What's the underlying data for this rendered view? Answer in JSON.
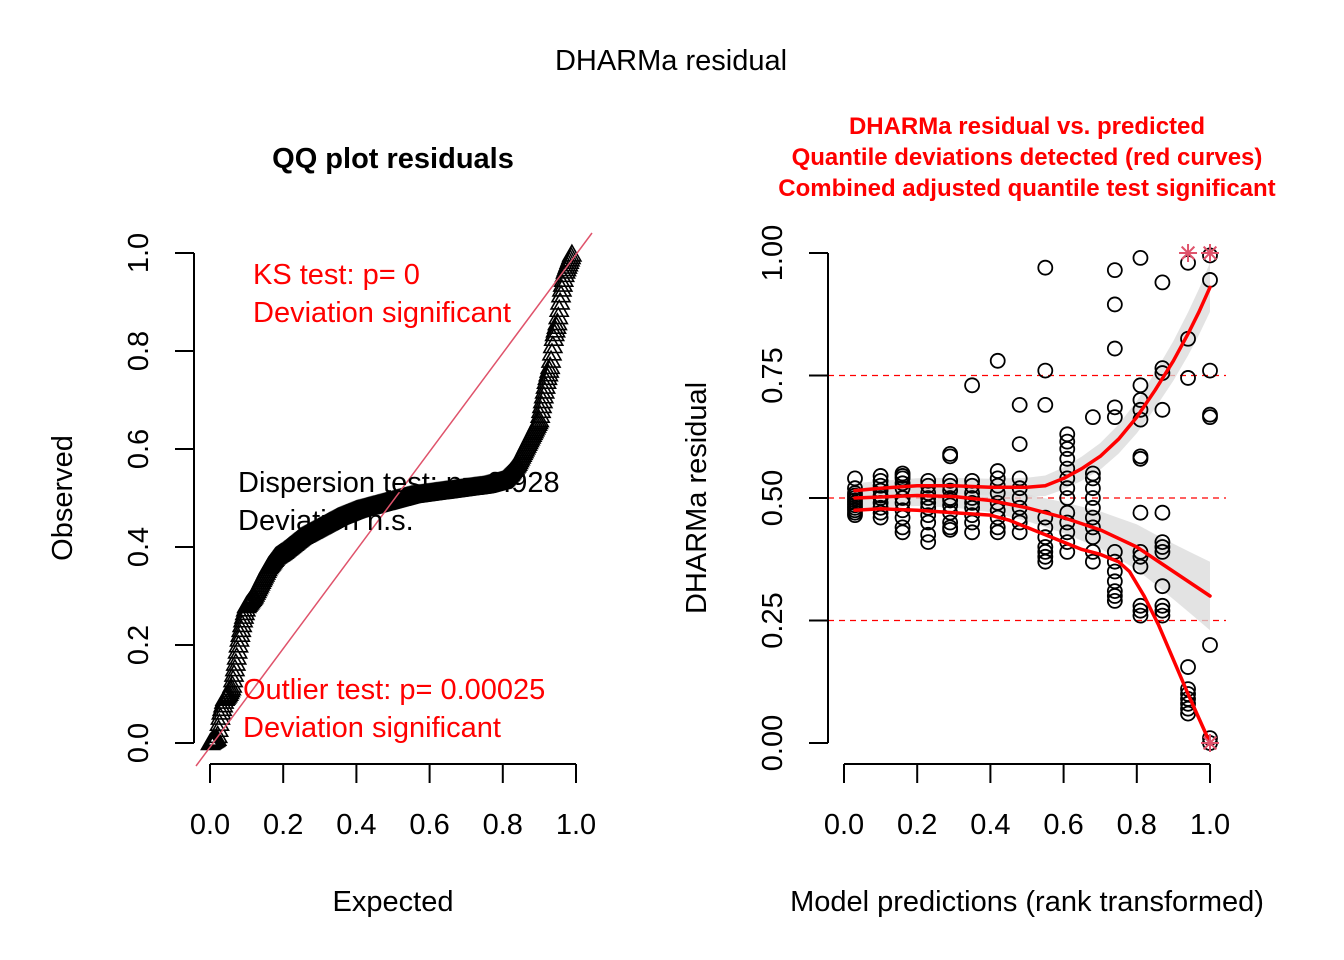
{
  "page_title": "DHARMa residual",
  "chart_data": [
    {
      "type": "scatter",
      "title": "QQ plot residuals",
      "xlabel": "Expected",
      "ylabel": "Observed",
      "xlim": [
        0,
        1
      ],
      "ylim": [
        0,
        1
      ],
      "xticks": [
        "0.0",
        "0.2",
        "0.4",
        "0.6",
        "0.8",
        "1.0"
      ],
      "yticks": [
        "0.0",
        "0.2",
        "0.4",
        "0.6",
        "0.8",
        "1.0"
      ],
      "marker": "triangle-open",
      "reference_line": {
        "from": [
          0,
          0
        ],
        "to": [
          1,
          1
        ],
        "color": "#df536b"
      },
      "curve": {
        "x": [
          0.0,
          0.01,
          0.02,
          0.03,
          0.04,
          0.05,
          0.06,
          0.07,
          0.08,
          0.09,
          0.1,
          0.12,
          0.14,
          0.16,
          0.18,
          0.2,
          0.25,
          0.3,
          0.35,
          0.4,
          0.45,
          0.5,
          0.55,
          0.6,
          0.65,
          0.7,
          0.75,
          0.8,
          0.82,
          0.84,
          0.86,
          0.88,
          0.9,
          0.91,
          0.92,
          0.93,
          0.94,
          0.95,
          0.96,
          0.97,
          0.98,
          0.99
        ],
        "y": [
          0.0,
          0.005,
          0.01,
          0.06,
          0.09,
          0.1,
          0.115,
          0.16,
          0.21,
          0.25,
          0.28,
          0.3,
          0.33,
          0.36,
          0.38,
          0.39,
          0.42,
          0.44,
          0.46,
          0.475,
          0.485,
          0.495,
          0.505,
          0.51,
          0.515,
          0.52,
          0.525,
          0.535,
          0.55,
          0.57,
          0.6,
          0.63,
          0.66,
          0.7,
          0.74,
          0.77,
          0.83,
          0.86,
          0.92,
          0.96,
          0.98,
          1.0
        ]
      },
      "annotations": [
        {
          "lines": [
            "KS test: p= 0",
            "Deviation  significant"
          ],
          "color": "#ff0000",
          "position": "top-left"
        },
        {
          "lines": [
            "Dispersion test: p= 0.928",
            "Deviation n.s."
          ],
          "color": "#000000",
          "position": "center"
        },
        {
          "lines": [
            "Outlier test: p= 0.00025",
            "Deviation  significant"
          ],
          "color": "#ff0000",
          "position": "bottom-left"
        }
      ]
    },
    {
      "type": "scatter",
      "title_lines": [
        "DHARMa residual vs. predicted",
        "Quantile deviations detected (red curves)",
        "Combined adjusted quantile test significant"
      ],
      "title_color": "#ff0000",
      "xlabel": "Model predictions (rank transformed)",
      "ylabel": "DHARMa residual",
      "xlim": [
        0,
        1
      ],
      "ylim": [
        0,
        1
      ],
      "xticks": [
        "0.0",
        "0.2",
        "0.4",
        "0.6",
        "0.8",
        "1.0"
      ],
      "yticks": [
        "0.00",
        "0.25",
        "0.50",
        "0.75",
        "1.00"
      ],
      "hlines": {
        "values": [
          0.25,
          0.5,
          0.75
        ],
        "color": "#ff0000",
        "style": "dashed"
      },
      "marker": "circle-open",
      "columns": [
        {
          "x": 0.03,
          "y": [
            0.54,
            0.52,
            0.51,
            0.505,
            0.5,
            0.495,
            0.49,
            0.485,
            0.48,
            0.475,
            0.47,
            0.465
          ]
        },
        {
          "x": 0.1,
          "y": [
            0.545,
            0.535,
            0.525,
            0.515,
            0.505,
            0.5,
            0.49,
            0.48,
            0.47,
            0.46
          ]
        },
        {
          "x": 0.16,
          "y": [
            0.55,
            0.545,
            0.54,
            0.53,
            0.52,
            0.5,
            0.49,
            0.475,
            0.46,
            0.44,
            0.43
          ]
        },
        {
          "x": 0.23,
          "y": [
            0.535,
            0.525,
            0.51,
            0.5,
            0.49,
            0.48,
            0.465,
            0.45,
            0.425,
            0.41
          ]
        },
        {
          "x": 0.29,
          "y": [
            0.59,
            0.585,
            0.535,
            0.525,
            0.515,
            0.5,
            0.495,
            0.485,
            0.47,
            0.45,
            0.44,
            0.435
          ]
        },
        {
          "x": 0.35,
          "y": [
            0.73,
            0.535,
            0.525,
            0.51,
            0.5,
            0.49,
            0.48,
            0.465,
            0.45,
            0.43
          ]
        },
        {
          "x": 0.42,
          "y": [
            0.78,
            0.555,
            0.54,
            0.525,
            0.51,
            0.49,
            0.475,
            0.46,
            0.44,
            0.43
          ]
        },
        {
          "x": 0.48,
          "y": [
            0.69,
            0.61,
            0.54,
            0.52,
            0.5,
            0.48,
            0.46,
            0.45,
            0.43
          ]
        },
        {
          "x": 0.55,
          "y": [
            0.97,
            0.76,
            0.69,
            0.46,
            0.44,
            0.42,
            0.4,
            0.39,
            0.38,
            0.37
          ]
        },
        {
          "x": 0.61,
          "y": [
            0.63,
            0.615,
            0.6,
            0.58,
            0.56,
            0.54,
            0.52,
            0.5,
            0.47,
            0.45,
            0.43,
            0.41,
            0.39
          ]
        },
        {
          "x": 0.68,
          "y": [
            0.665,
            0.55,
            0.54,
            0.52,
            0.5,
            0.48,
            0.46,
            0.44,
            0.42,
            0.39,
            0.37
          ]
        },
        {
          "x": 0.74,
          "y": [
            0.965,
            0.895,
            0.805,
            0.685,
            0.665,
            0.39,
            0.37,
            0.35,
            0.33,
            0.31,
            0.3,
            0.29
          ]
        },
        {
          "x": 0.81,
          "y": [
            0.99,
            0.73,
            0.7,
            0.68,
            0.66,
            0.585,
            0.58,
            0.47,
            0.39,
            0.38,
            0.36,
            0.28,
            0.27,
            0.26
          ]
        },
        {
          "x": 0.87,
          "y": [
            0.94,
            0.765,
            0.755,
            0.68,
            0.47,
            0.41,
            0.4,
            0.39,
            0.32,
            0.28,
            0.27,
            0.26
          ]
        },
        {
          "x": 0.94,
          "y": [
            0.98,
            0.825,
            0.745,
            0.155,
            0.11,
            0.1,
            0.09,
            0.08,
            0.07,
            0.06
          ]
        },
        {
          "x": 1.0,
          "y": [
            0.995,
            0.945,
            0.76,
            0.67,
            0.665,
            0.2,
            0.01,
            0.0
          ]
        }
      ],
      "outliers": [
        {
          "x": 0.94,
          "y": 1.0
        },
        {
          "x": 1.0,
          "y": 1.0
        },
        {
          "x": 1.0,
          "y": 0.0
        }
      ],
      "outlier_color": "#df536b",
      "quantile_curves": [
        {
          "name": "q0.75",
          "x": [
            0.03,
            0.1,
            0.2,
            0.3,
            0.4,
            0.5,
            0.55,
            0.6,
            0.65,
            0.7,
            0.75,
            0.8,
            0.85,
            0.9,
            0.94,
            0.97,
            1.0
          ],
          "y": [
            0.515,
            0.52,
            0.525,
            0.525,
            0.522,
            0.522,
            0.525,
            0.54,
            0.56,
            0.585,
            0.62,
            0.665,
            0.72,
            0.78,
            0.835,
            0.88,
            0.93
          ],
          "band": 0.025
        },
        {
          "name": "q0.5",
          "x": [
            0.03,
            0.1,
            0.2,
            0.3,
            0.4,
            0.5,
            0.6,
            0.7,
            0.8,
            0.85,
            0.9,
            0.95,
            1.0
          ],
          "y": [
            0.5,
            0.502,
            0.505,
            0.503,
            0.495,
            0.48,
            0.46,
            0.435,
            0.4,
            0.375,
            0.35,
            0.325,
            0.3
          ],
          "band": 0.035
        },
        {
          "name": "q0.25",
          "x": [
            0.03,
            0.1,
            0.2,
            0.3,
            0.4,
            0.45,
            0.5,
            0.55,
            0.6,
            0.65,
            0.7,
            0.75,
            0.78,
            0.82,
            0.86,
            0.9,
            0.94,
            0.97,
            1.0
          ],
          "y": [
            0.475,
            0.478,
            0.475,
            0.47,
            0.465,
            0.455,
            0.44,
            0.425,
            0.41,
            0.395,
            0.385,
            0.37,
            0.35,
            0.3,
            0.24,
            0.17,
            0.1,
            0.05,
            0.0
          ],
          "band": 0
        }
      ],
      "curve_color": "#ff0000"
    }
  ]
}
